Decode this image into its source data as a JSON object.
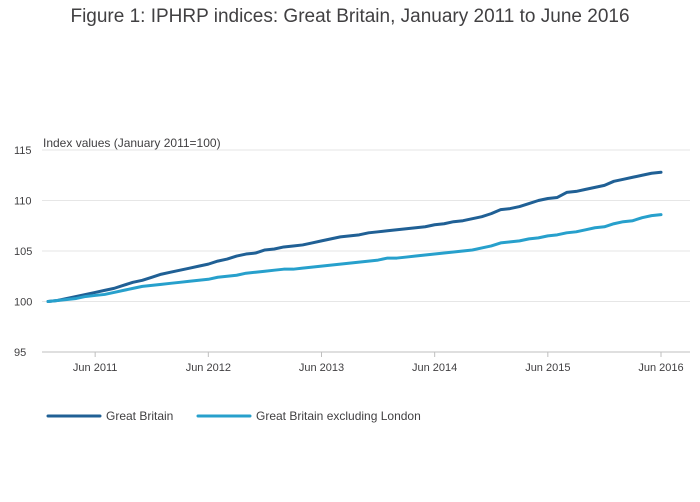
{
  "chart_data": {
    "type": "line",
    "title": "Figure 1: IPHRP indices: Great Britain, January 2011 to June 2016",
    "ylabel": "Index values (January 2011=100)",
    "xlabel": "",
    "ylim": [
      95,
      115
    ],
    "yticks": [
      95,
      100,
      105,
      110,
      115
    ],
    "x_start": "2011-01",
    "x_count": 66,
    "xticks": [
      {
        "label": "Jun 2011",
        "index": 5
      },
      {
        "label": "Jun 2012",
        "index": 17
      },
      {
        "label": "Jun 2013",
        "index": 29
      },
      {
        "label": "Jun 2014",
        "index": 41
      },
      {
        "label": "Jun 2015",
        "index": 53
      },
      {
        "label": "Jun 2016",
        "index": 65
      }
    ],
    "grid": true,
    "legend_position": "bottom",
    "series": [
      {
        "name": "Great Britain",
        "color": "#206095",
        "values": [
          100.0,
          100.1,
          100.3,
          100.5,
          100.7,
          100.9,
          101.1,
          101.3,
          101.6,
          101.9,
          102.1,
          102.4,
          102.7,
          102.9,
          103.1,
          103.3,
          103.5,
          103.7,
          104.0,
          104.2,
          104.5,
          104.7,
          104.8,
          105.1,
          105.2,
          105.4,
          105.5,
          105.6,
          105.8,
          106.0,
          106.2,
          106.4,
          106.5,
          106.6,
          106.8,
          106.9,
          107.0,
          107.1,
          107.2,
          107.3,
          107.4,
          107.6,
          107.7,
          107.9,
          108.0,
          108.2,
          108.4,
          108.7,
          109.1,
          109.2,
          109.4,
          109.7,
          110.0,
          110.2,
          110.3,
          110.8,
          110.9,
          111.1,
          111.3,
          111.5,
          111.9,
          112.1,
          112.3,
          112.5,
          112.7,
          112.8
        ]
      },
      {
        "name": "Great Britain excluding London",
        "color": "#27a0cc",
        "values": [
          100.0,
          100.1,
          100.2,
          100.3,
          100.5,
          100.6,
          100.7,
          100.9,
          101.1,
          101.3,
          101.5,
          101.6,
          101.7,
          101.8,
          101.9,
          102.0,
          102.1,
          102.2,
          102.4,
          102.5,
          102.6,
          102.8,
          102.9,
          103.0,
          103.1,
          103.2,
          103.2,
          103.3,
          103.4,
          103.5,
          103.6,
          103.7,
          103.8,
          103.9,
          104.0,
          104.1,
          104.3,
          104.3,
          104.4,
          104.5,
          104.6,
          104.7,
          104.8,
          104.9,
          105.0,
          105.1,
          105.3,
          105.5,
          105.8,
          105.9,
          106.0,
          106.2,
          106.3,
          106.5,
          106.6,
          106.8,
          106.9,
          107.1,
          107.3,
          107.4,
          107.7,
          107.9,
          108.0,
          108.3,
          108.5,
          108.6
        ]
      }
    ]
  }
}
